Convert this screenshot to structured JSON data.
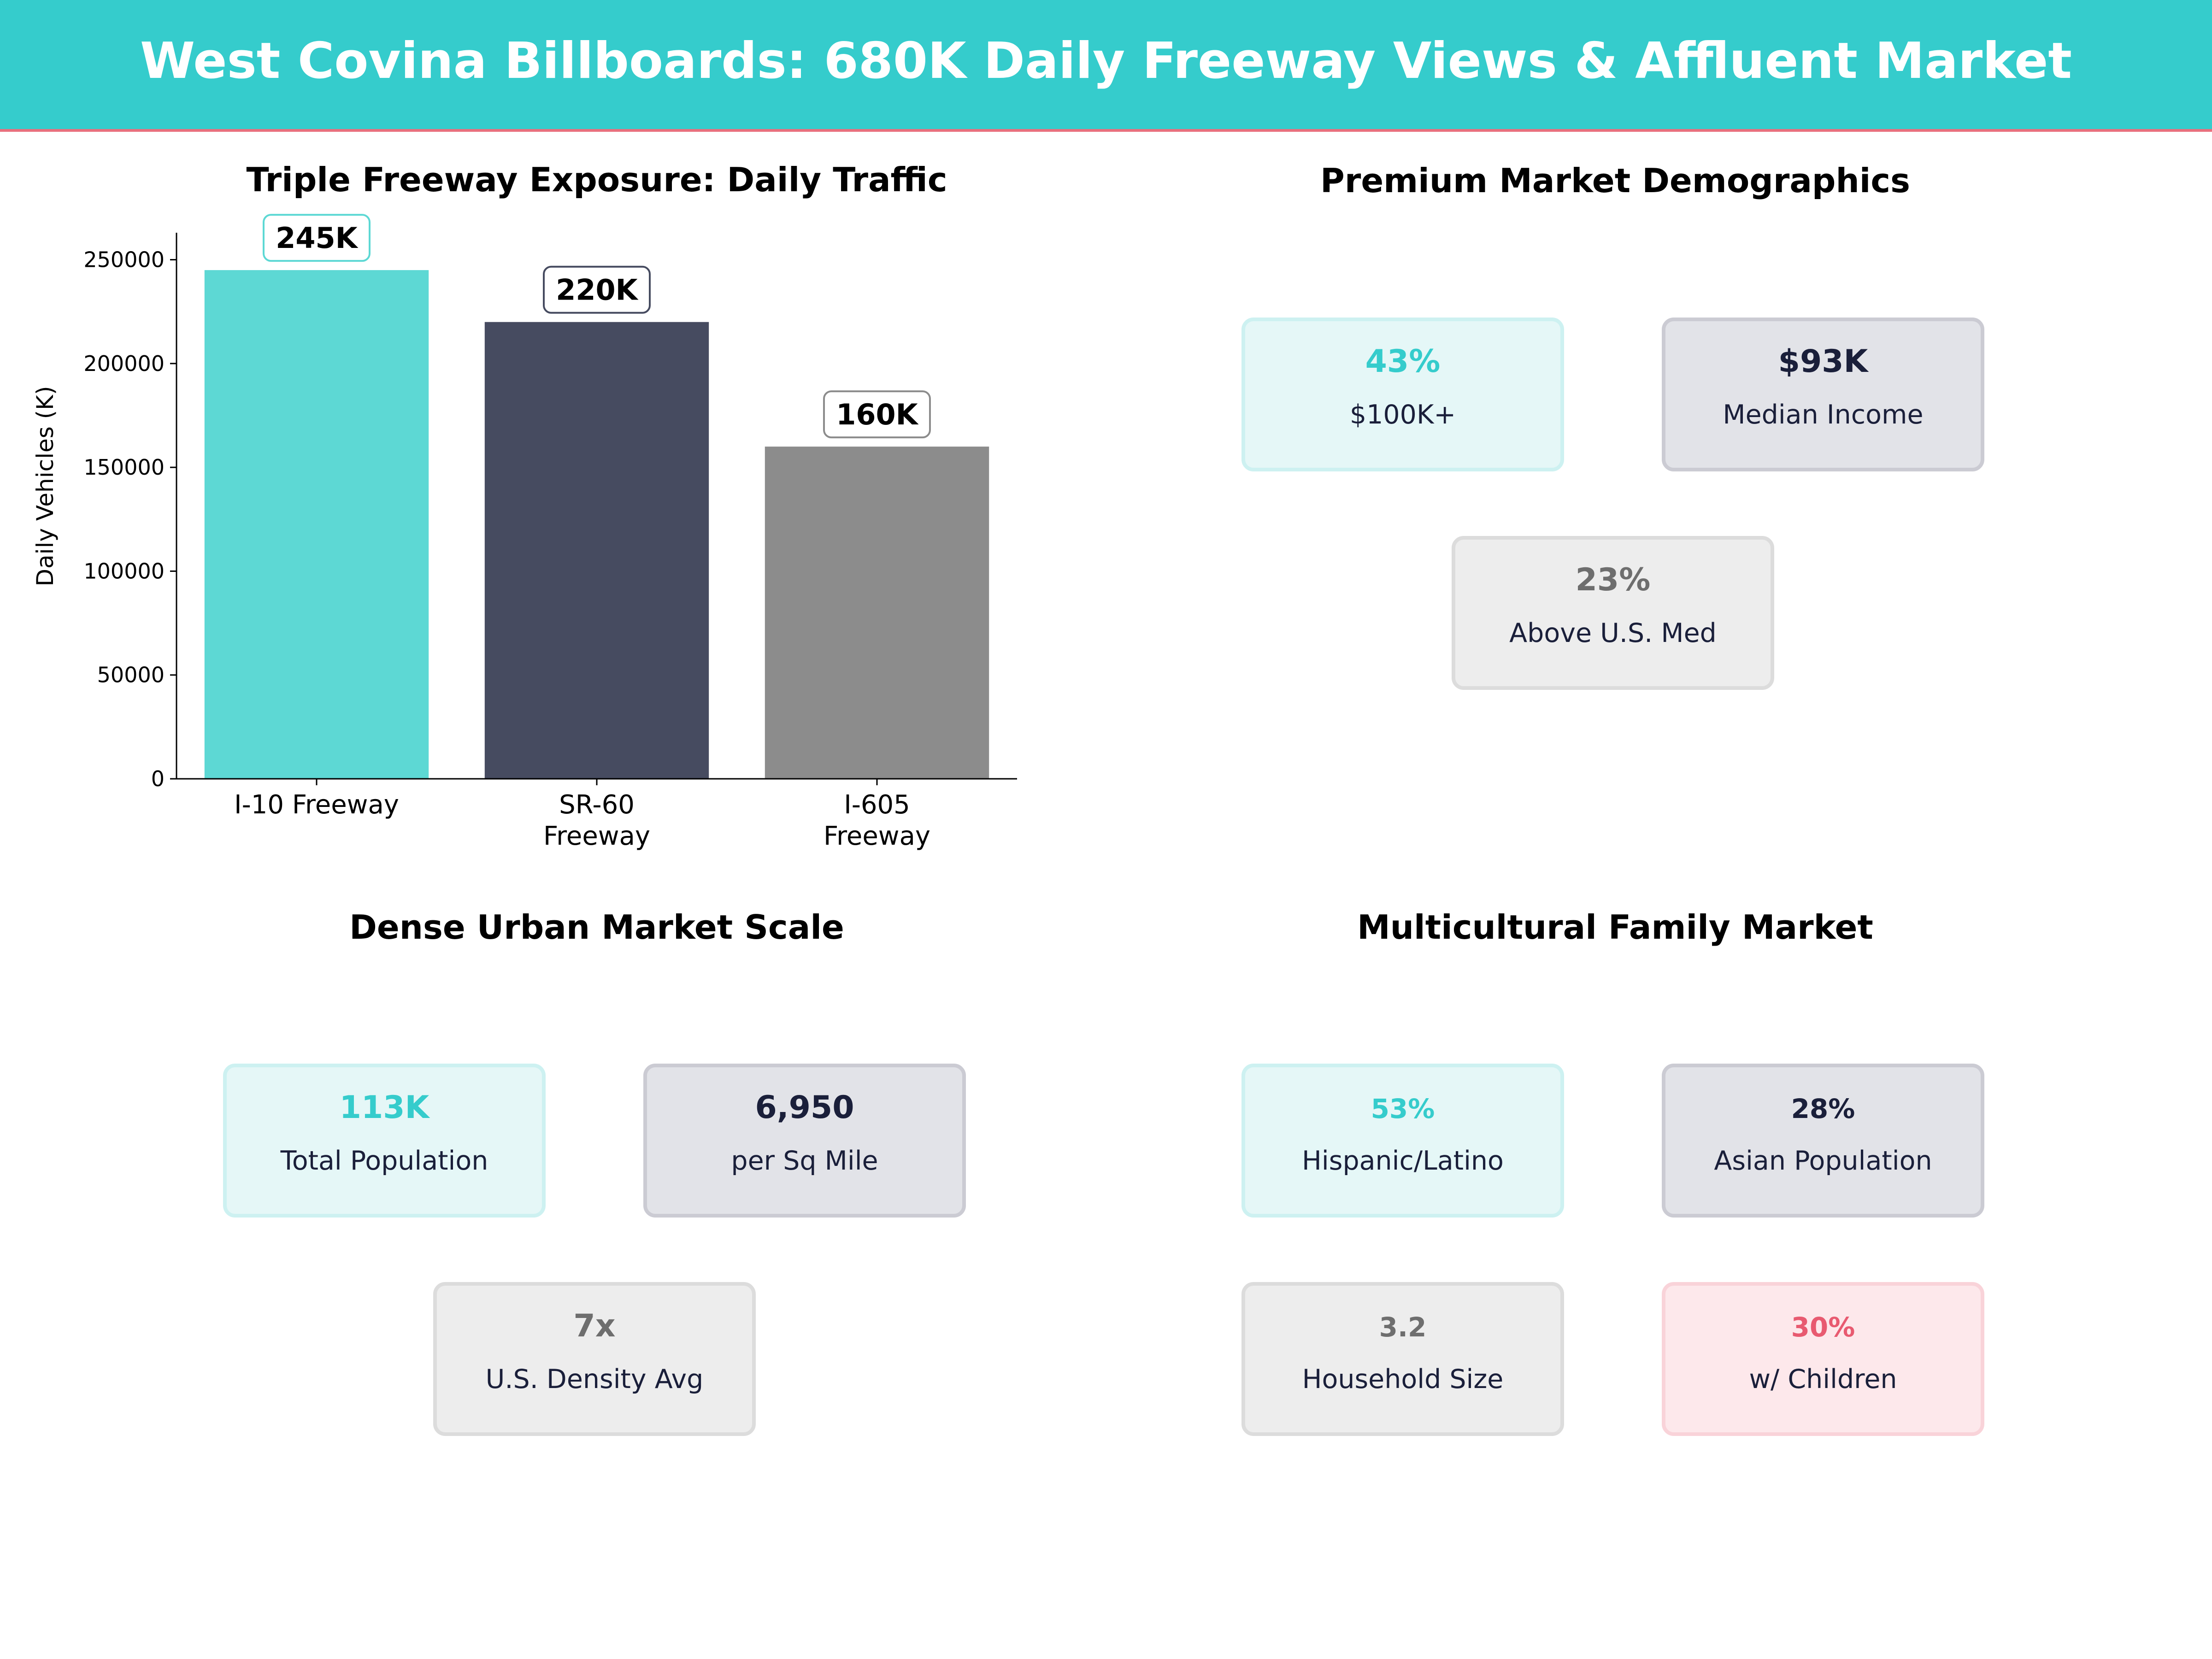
{
  "header": {
    "title": "West Covina Billboards: 680K Daily Freeway Views & Affluent Market"
  },
  "chart_data": {
    "type": "bar",
    "title": "Triple Freeway Exposure: Daily Traffic",
    "xlabel": "",
    "ylabel": "Daily Vehicles (K)",
    "categories": [
      "I-10 Freeway",
      "SR-60\nFreeway",
      "I-605\nFreeway"
    ],
    "values": [
      245000,
      220000,
      160000
    ],
    "data_labels": [
      "245K",
      "220K",
      "160K"
    ],
    "colors": [
      "#5DD8D4",
      "#464B60",
      "#8C8C8C"
    ],
    "label_border_colors": [
      "#5DD8D4",
      "#464B60",
      "#8C8C8C"
    ],
    "ylim": [
      0,
      263000
    ],
    "yticks": [
      0,
      50000,
      100000,
      150000,
      200000,
      250000
    ],
    "grid": false
  },
  "demographics": {
    "title": "Premium Market Demographics",
    "cards": [
      {
        "value": "43%",
        "label": "$100K+"
      },
      {
        "value": "$93K",
        "label": "Median Income"
      },
      {
        "value": "23%",
        "label": "Above U.S. Med"
      }
    ]
  },
  "urban": {
    "title": "Dense Urban Market Scale",
    "cards": [
      {
        "value": "113K",
        "label": "Total Population"
      },
      {
        "value": "6,950",
        "label": "per Sq Mile"
      },
      {
        "value": "7x",
        "label": "U.S. Density Avg"
      }
    ]
  },
  "family": {
    "title": "Multicultural Family Market",
    "cards": [
      {
        "value": "53%",
        "label": "Hispanic/Latino"
      },
      {
        "value": "28%",
        "label": "Asian Population"
      },
      {
        "value": "3.2",
        "label": "Household Size"
      },
      {
        "value": "30%",
        "label": "w/ Children"
      }
    ]
  },
  "colors": {
    "accent": "#35CCCC",
    "navy": "#1A1F3A",
    "gray": "#6E6E6E",
    "pink": "#E85A70",
    "header_rule": "#E8707E"
  }
}
